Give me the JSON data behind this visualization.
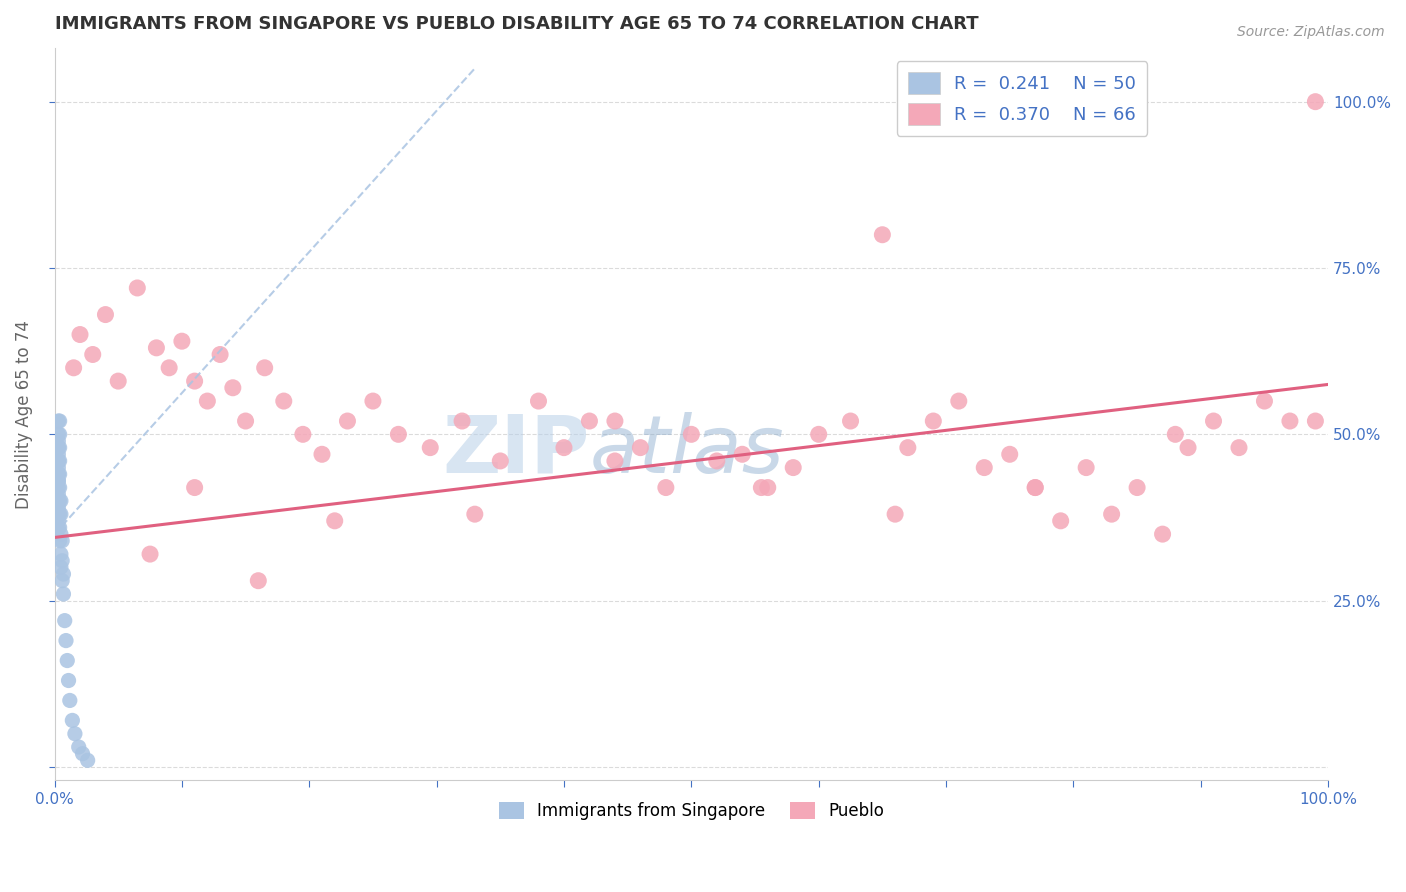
{
  "title": "IMMIGRANTS FROM SINGAPORE VS PUEBLO DISABILITY AGE 65 TO 74 CORRELATION CHART",
  "source_text": "Source: ZipAtlas.com",
  "ylabel": "Disability Age 65 to 74",
  "xlim": [
    0.0,
    1.0
  ],
  "ylim": [
    -0.02,
    1.08
  ],
  "blue_R": 0.241,
  "blue_N": 50,
  "pink_R": 0.37,
  "pink_N": 66,
  "blue_color": "#aac4e2",
  "pink_color": "#f4a8b8",
  "blue_line_color": "#aac4e2",
  "pink_line_color": "#e06080",
  "legend_label_blue": "Immigrants from Singapore",
  "legend_label_pink": "Pueblo",
  "watermark_zip": "ZIP",
  "watermark_atlas": "atlas",
  "blue_scatter_x": [
    0.003,
    0.003,
    0.003,
    0.003,
    0.003,
    0.003,
    0.003,
    0.003,
    0.003,
    0.003,
    0.003,
    0.003,
    0.003,
    0.003,
    0.003,
    0.003,
    0.003,
    0.003,
    0.003,
    0.003,
    0.004,
    0.004,
    0.004,
    0.004,
    0.004,
    0.004,
    0.004,
    0.004,
    0.004,
    0.004,
    0.005,
    0.005,
    0.005,
    0.005,
    0.005,
    0.006,
    0.006,
    0.006,
    0.007,
    0.007,
    0.008,
    0.009,
    0.01,
    0.011,
    0.012,
    0.014,
    0.016,
    0.019,
    0.022,
    0.026
  ],
  "blue_scatter_y": [
    0.38,
    0.4,
    0.42,
    0.43,
    0.44,
    0.45,
    0.46,
    0.47,
    0.48,
    0.49,
    0.36,
    0.37,
    0.39,
    0.41,
    0.43,
    0.44,
    0.46,
    0.48,
    0.5,
    0.52,
    0.34,
    0.36,
    0.38,
    0.4,
    0.42,
    0.44,
    0.46,
    0.48,
    0.5,
    0.52,
    0.3,
    0.32,
    0.35,
    0.38,
    0.4,
    0.28,
    0.31,
    0.34,
    0.26,
    0.29,
    0.22,
    0.19,
    0.16,
    0.13,
    0.1,
    0.07,
    0.05,
    0.03,
    0.02,
    0.01
  ],
  "pink_scatter_x": [
    0.015,
    0.02,
    0.03,
    0.04,
    0.05,
    0.065,
    0.08,
    0.09,
    0.1,
    0.11,
    0.12,
    0.13,
    0.14,
    0.15,
    0.165,
    0.18,
    0.195,
    0.21,
    0.23,
    0.25,
    0.27,
    0.295,
    0.32,
    0.35,
    0.38,
    0.4,
    0.42,
    0.44,
    0.46,
    0.48,
    0.5,
    0.52,
    0.54,
    0.56,
    0.58,
    0.6,
    0.625,
    0.65,
    0.67,
    0.69,
    0.71,
    0.73,
    0.75,
    0.77,
    0.79,
    0.81,
    0.83,
    0.85,
    0.87,
    0.89,
    0.91,
    0.93,
    0.95,
    0.97,
    0.99,
    0.11,
    0.22,
    0.33,
    0.44,
    0.555,
    0.66,
    0.77,
    0.88,
    0.99,
    0.075,
    0.16
  ],
  "pink_scatter_y": [
    0.6,
    0.65,
    0.62,
    0.68,
    0.58,
    0.72,
    0.63,
    0.6,
    0.64,
    0.58,
    0.55,
    0.62,
    0.57,
    0.52,
    0.6,
    0.55,
    0.5,
    0.47,
    0.52,
    0.55,
    0.5,
    0.48,
    0.52,
    0.46,
    0.55,
    0.48,
    0.52,
    0.46,
    0.48,
    0.42,
    0.5,
    0.46,
    0.47,
    0.42,
    0.45,
    0.5,
    0.52,
    0.8,
    0.48,
    0.52,
    0.55,
    0.45,
    0.47,
    0.42,
    0.37,
    0.45,
    0.38,
    0.42,
    0.35,
    0.48,
    0.52,
    0.48,
    0.55,
    0.52,
    1.0,
    0.42,
    0.37,
    0.38,
    0.52,
    0.42,
    0.38,
    0.42,
    0.5,
    0.52,
    0.32,
    0.28
  ],
  "blue_line_x": [
    0.0,
    0.33
  ],
  "blue_line_y": [
    0.35,
    1.05
  ],
  "pink_line_x": [
    0.0,
    1.0
  ],
  "pink_line_y": [
    0.345,
    0.575
  ],
  "background_color": "#ffffff",
  "grid_color": "#d8d8d8",
  "title_color": "#333333",
  "axis_label_color": "#666666",
  "tick_color_blue": "#4472c4"
}
